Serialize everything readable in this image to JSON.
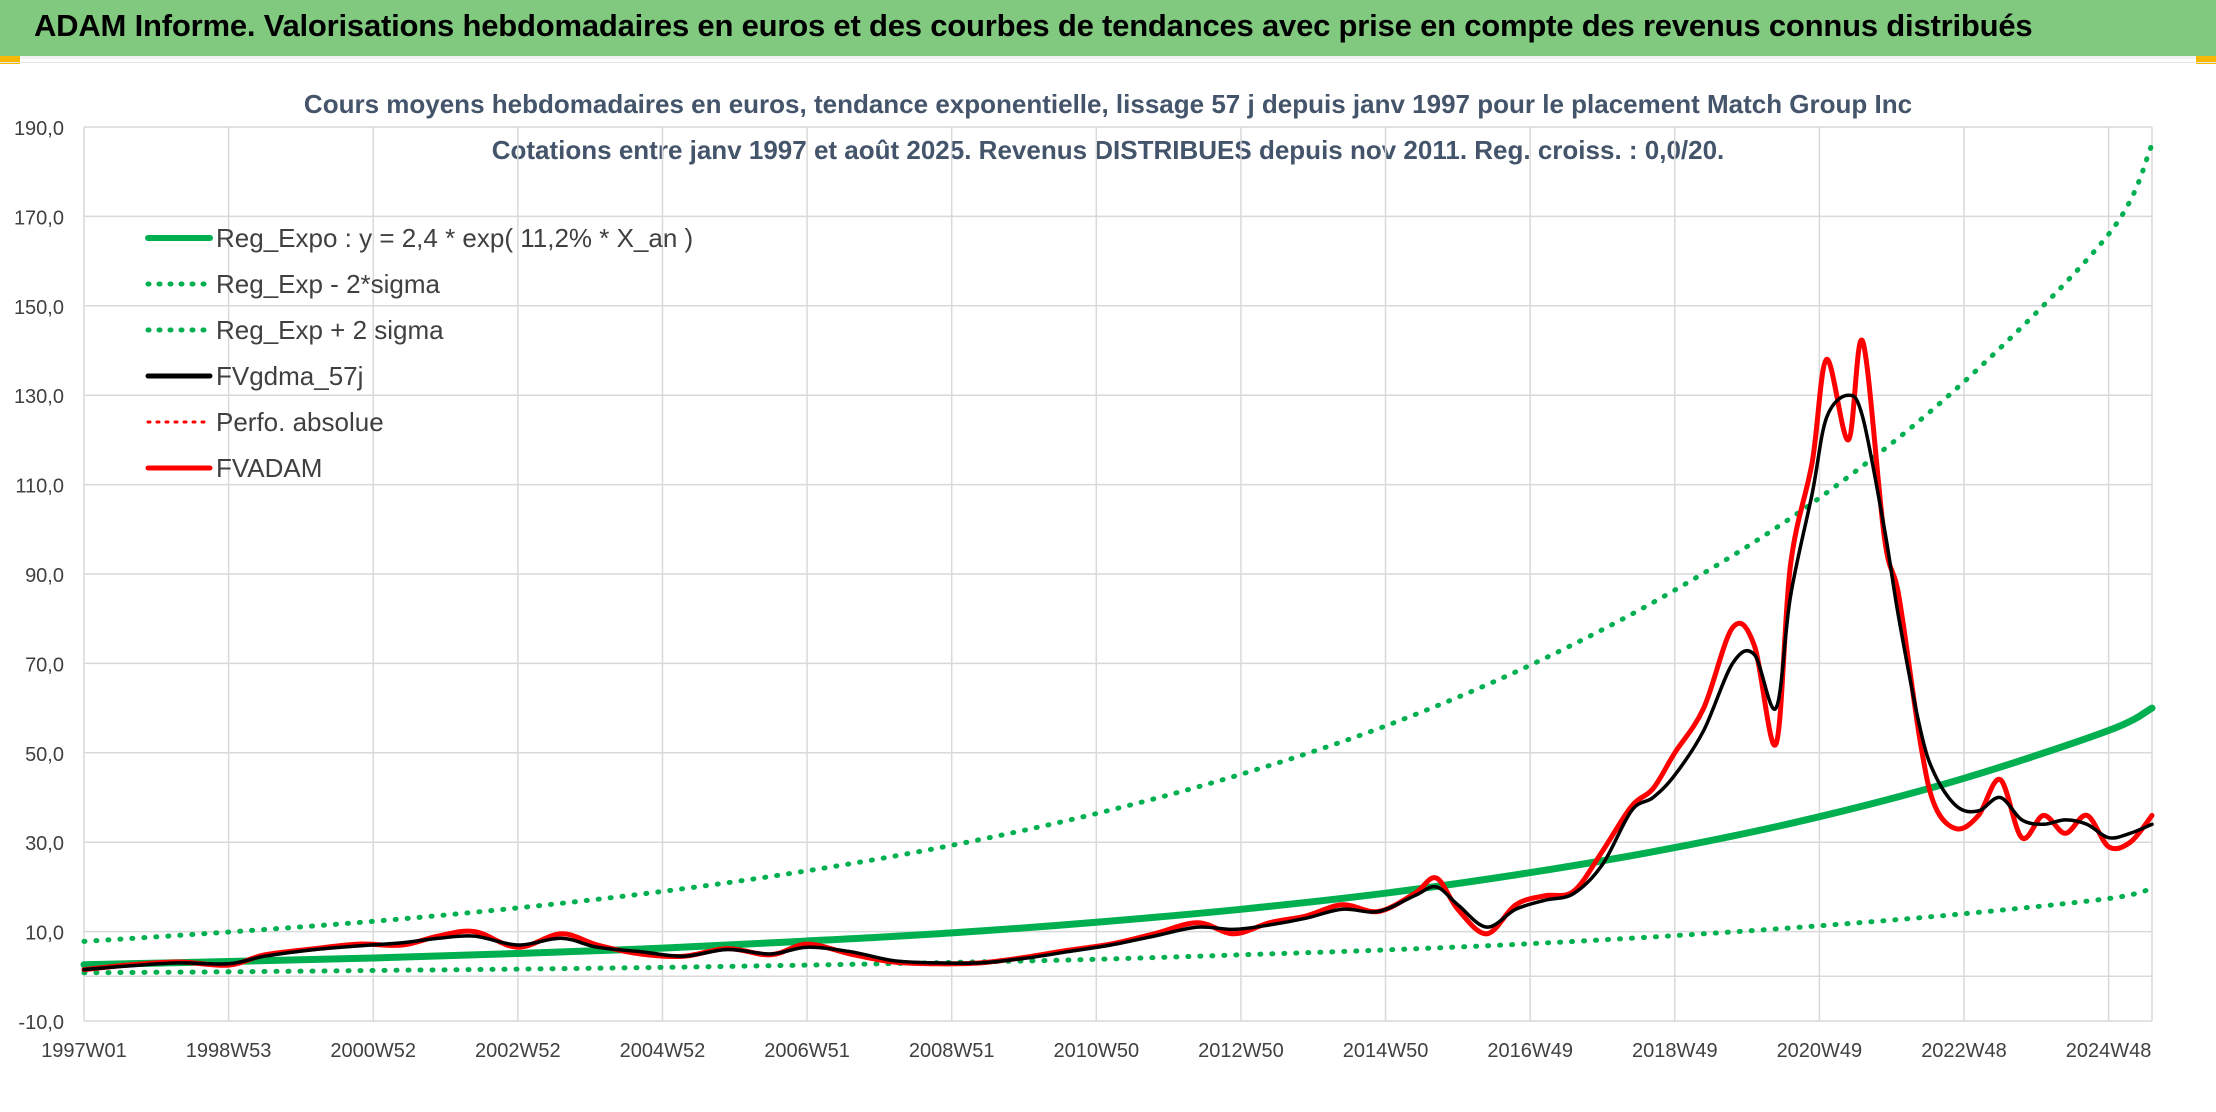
{
  "header": {
    "title": "ADAM Informe. Valorisations hebdomadaires en euros et des courbes de tendances avec prise en compte des revenus connus distribués"
  },
  "chart_data": {
    "type": "line",
    "title": "Cours moyens hebdomadaires en euros, tendance exponentielle, lissage 57 j depuis janv 1997 pour le placement Match Group Inc",
    "subtitle": "Cotations entre janv 1997 et août 2025. Revenus DISTRIBUES depuis nov 2011. Reg. croiss. : 0,0/20.",
    "xlabel": "",
    "ylabel": "",
    "x_range": [
      1997.0,
      2025.6
    ],
    "ylim": [
      -10,
      190
    ],
    "y_ticks": [
      "190,0",
      "170,0",
      "150,0",
      "130,0",
      "110,0",
      "90,0",
      "70,0",
      "50,0",
      "30,0",
      "10,0",
      "-10,0"
    ],
    "y_tick_values": [
      190,
      170,
      150,
      130,
      110,
      90,
      70,
      50,
      30,
      10,
      -10
    ],
    "x_ticks": [
      "1997W01",
      "1998W53",
      "2000W52",
      "2002W52",
      "2004W52",
      "2006W51",
      "2008W51",
      "2010W50",
      "2012W50",
      "2014W50",
      "2016W49",
      "2018W49",
      "2020W49",
      "2022W48",
      "2024W48"
    ],
    "x_tick_values": [
      1997.0,
      1999.0,
      2001.0,
      2003.0,
      2005.0,
      2007.0,
      2009.0,
      2011.0,
      2013.0,
      2015.0,
      2017.0,
      2019.0,
      2021.0,
      2023.0,
      2025.0
    ],
    "grid": true,
    "legend_position": "top-left",
    "series": [
      {
        "name": "Reg_Expo : y = 2,4 * exp( 11,2% *  X_an )",
        "color": "#00b050",
        "style": "solid",
        "x": [
          1997.0,
          1999.0,
          2001.0,
          2003.0,
          2005.0,
          2007.0,
          2009.0,
          2011.0,
          2013.0,
          2015.0,
          2017.0,
          2019.0,
          2021.0,
          2023.0,
          2025.0,
          2025.6
        ],
        "values": [
          2.6,
          3.3,
          4.1,
          5.1,
          6.3,
          7.9,
          9.7,
          12.1,
          15.0,
          18.6,
          23.2,
          28.8,
          35.7,
          44.3,
          55.0,
          60.0
        ]
      },
      {
        "name": "Reg_Exp - 2*sigma",
        "color": "#00b050",
        "style": "dotted",
        "x": [
          1997.0,
          1999.0,
          2001.0,
          2003.0,
          2005.0,
          2007.0,
          2009.0,
          2011.0,
          2013.0,
          2015.0,
          2017.0,
          2019.0,
          2021.0,
          2023.0,
          2025.0,
          2025.6
        ],
        "values": [
          0.8,
          1.0,
          1.3,
          1.6,
          2.0,
          2.5,
          3.1,
          3.8,
          4.8,
          5.9,
          7.3,
          9.1,
          11.3,
          14.0,
          17.4,
          19.6
        ]
      },
      {
        "name": "Reg_Exp + 2 sigma",
        "color": "#00b050",
        "style": "dotted",
        "x": [
          1997.0,
          1999.0,
          2001.0,
          2003.0,
          2005.0,
          2007.0,
          2009.0,
          2011.0,
          2013.0,
          2015.0,
          2017.0,
          2019.0,
          2021.0,
          2023.0,
          2025.0,
          2025.6
        ],
        "values": [
          7.8,
          9.9,
          12.3,
          15.3,
          19.0,
          23.6,
          29.3,
          36.4,
          45.2,
          56.0,
          69.6,
          86.4,
          107.0,
          133.0,
          166.0,
          186.0
        ]
      },
      {
        "name": "FVgdma_57j",
        "color": "#000000",
        "style": "solid",
        "x": [
          1997.0,
          1997.6,
          1998.3,
          1999.0,
          1999.5,
          2000.2,
          2000.8,
          2001.4,
          2001.9,
          2002.4,
          2003.0,
          2003.6,
          2004.1,
          2004.7,
          2005.3,
          2005.9,
          2006.5,
          2007.0,
          2007.6,
          2008.2,
          2008.8,
          2009.4,
          2010.0,
          2010.6,
          2011.2,
          2011.8,
          2012.4,
          2012.9,
          2013.4,
          2013.9,
          2014.4,
          2014.9,
          2015.4,
          2015.7,
          2016.0,
          2016.4,
          2016.8,
          2017.2,
          2017.6,
          2018.0,
          2018.4,
          2018.7,
          2019.0,
          2019.4,
          2019.8,
          2020.1,
          2020.4,
          2020.6,
          2020.9,
          2021.1,
          2021.4,
          2021.6,
          2021.9,
          2022.1,
          2022.4,
          2022.6,
          2022.9,
          2023.2,
          2023.5,
          2023.8,
          2024.1,
          2024.4,
          2024.7,
          2025.0,
          2025.3,
          2025.6
        ],
        "values": [
          1.5,
          2.3,
          3.0,
          2.8,
          4.5,
          6.0,
          6.8,
          7.5,
          8.5,
          9.0,
          7.0,
          8.5,
          6.5,
          5.5,
          4.5,
          6.0,
          5.0,
          6.5,
          5.5,
          3.5,
          3.0,
          3.0,
          4.0,
          5.5,
          7.0,
          9.0,
          11.0,
          10.5,
          11.5,
          13.0,
          15.0,
          14.5,
          18.0,
          20.0,
          16.0,
          11.0,
          15.0,
          17.0,
          18.5,
          25.0,
          37.0,
          40.0,
          45.0,
          55.0,
          70.0,
          72.0,
          60.0,
          85.0,
          108.0,
          125.0,
          130.0,
          125.0,
          100.0,
          80.0,
          55.0,
          45.0,
          38.0,
          37.0,
          40.0,
          35.0,
          34.0,
          35.0,
          34.0,
          31.0,
          32.0,
          34.0
        ]
      },
      {
        "name": "Perfo. absolue",
        "color": "#ff0000",
        "style": "dotted",
        "x": [
          1997.0,
          1997.6,
          1998.3,
          1999.0,
          1999.5,
          2000.2,
          2000.8,
          2001.4,
          2001.9,
          2002.4,
          2003.0,
          2003.6,
          2004.1,
          2004.7,
          2005.3,
          2005.9,
          2006.5,
          2007.0,
          2007.6,
          2008.2,
          2008.8,
          2009.4,
          2010.0,
          2010.6,
          2011.2,
          2011.8,
          2012.4,
          2012.9,
          2013.4,
          2013.9,
          2014.4,
          2014.9,
          2015.4,
          2015.7,
          2016.0,
          2016.4,
          2016.8,
          2017.2,
          2017.6,
          2018.0,
          2018.4,
          2018.7,
          2019.0,
          2019.4,
          2019.8,
          2020.1,
          2020.4,
          2020.6,
          2020.9,
          2021.1,
          2021.4,
          2021.6,
          2021.9,
          2022.1,
          2022.4,
          2022.6,
          2022.9,
          2023.2,
          2023.5,
          2023.8,
          2024.1,
          2024.4,
          2024.7,
          2025.0,
          2025.3,
          2025.6
        ],
        "values": [
          1.5,
          2.3,
          3.0,
          2.8,
          4.5,
          6.0,
          6.8,
          7.5,
          8.5,
          9.0,
          7.0,
          8.5,
          6.5,
          5.5,
          4.5,
          6.0,
          5.0,
          6.5,
          5.5,
          3.5,
          3.0,
          3.0,
          4.0,
          5.5,
          7.0,
          9.0,
          11.0,
          10.5,
          11.5,
          13.0,
          15.0,
          14.5,
          18.0,
          20.0,
          16.0,
          11.0,
          15.0,
          17.0,
          18.5,
          25.0,
          37.0,
          40.0,
          45.0,
          55.0,
          70.0,
          72.0,
          60.0,
          85.0,
          108.0,
          125.0,
          130.0,
          125.0,
          100.0,
          80.0,
          55.0,
          45.0,
          38.0,
          37.0,
          40.0,
          35.0,
          34.0,
          35.0,
          34.0,
          31.0,
          32.0,
          34.0
        ]
      },
      {
        "name": "FVADAM",
        "color": "#ff0000",
        "style": "solid",
        "x": [
          1997.0,
          1997.6,
          1998.3,
          1999.0,
          1999.5,
          2000.2,
          2000.8,
          2001.4,
          2001.9,
          2002.4,
          2003.0,
          2003.6,
          2004.1,
          2004.7,
          2005.3,
          2005.9,
          2006.5,
          2007.0,
          2007.6,
          2008.2,
          2008.8,
          2009.4,
          2010.0,
          2010.6,
          2011.2,
          2011.8,
          2012.4,
          2012.9,
          2013.4,
          2013.9,
          2014.4,
          2014.9,
          2015.4,
          2015.7,
          2016.0,
          2016.4,
          2016.8,
          2017.2,
          2017.6,
          2018.0,
          2018.4,
          2018.7,
          2019.0,
          2019.4,
          2019.8,
          2020.1,
          2020.4,
          2020.6,
          2020.9,
          2021.1,
          2021.4,
          2021.6,
          2021.9,
          2022.1,
          2022.4,
          2022.6,
          2022.9,
          2023.2,
          2023.5,
          2023.8,
          2024.1,
          2024.4,
          2024.7,
          2025.0,
          2025.3,
          2025.6
        ],
        "values": [
          1.5,
          2.5,
          3.2,
          2.5,
          4.8,
          6.2,
          7.2,
          7.0,
          9.0,
          10.0,
          6.5,
          9.5,
          7.0,
          5.0,
          4.5,
          6.2,
          4.8,
          7.2,
          5.0,
          3.2,
          2.8,
          3.0,
          4.2,
          5.8,
          7.2,
          9.5,
          12.0,
          9.5,
          12.0,
          13.5,
          16.0,
          14.5,
          18.5,
          22.0,
          15.0,
          9.5,
          16.0,
          18.0,
          19.0,
          28.0,
          38.0,
          42.0,
          50.0,
          60.0,
          78.0,
          74.0,
          52.0,
          92.0,
          115.0,
          138.0,
          120.0,
          142.0,
          98.0,
          85.0,
          52.0,
          38.0,
          33.0,
          36.0,
          44.0,
          31.0,
          36.0,
          32.0,
          36.0,
          29.0,
          30.0,
          36.0
        ]
      }
    ]
  }
}
